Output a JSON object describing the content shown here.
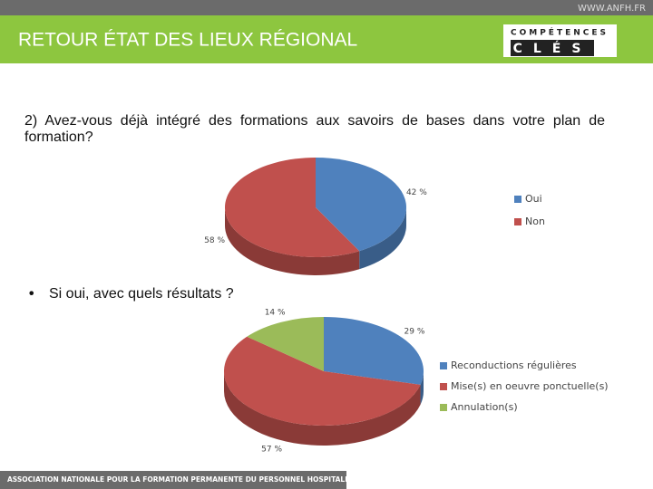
{
  "header": {
    "site": "WWW.ANFH.FR",
    "title": "RETOUR ÉTAT DES LIEUX RÉGIONAL",
    "logo_top": "COMPÉTENCES",
    "logo_bottom": "CLÉS"
  },
  "question": "2) Avez-vous déjà intégré des formations aux savoirs de bases dans votre plan de formation?",
  "bullet": "Si oui, avec quels résultats ?",
  "footer": "ASSOCIATION NATIONALE POUR LA FORMATION PERMANENTE DU PERSONNEL HOSPITALIER",
  "chart_data": [
    {
      "type": "pie",
      "categories": [
        "Oui",
        "Non"
      ],
      "values": [
        42,
        58
      ],
      "value_labels": [
        "42 %",
        "58 %"
      ],
      "colors": [
        "#4f81bd",
        "#c0504d"
      ],
      "legend": "right"
    },
    {
      "type": "pie",
      "categories": [
        "Reconductions régulières",
        "Mise(s) en oeuvre ponctuelle(s)",
        "Annulation(s)"
      ],
      "values": [
        29,
        57,
        14
      ],
      "value_labels": [
        "29 %",
        "57 %",
        "14 %"
      ],
      "colors": [
        "#4f81bd",
        "#c0504d",
        "#9bbb59"
      ],
      "legend": "right"
    }
  ]
}
